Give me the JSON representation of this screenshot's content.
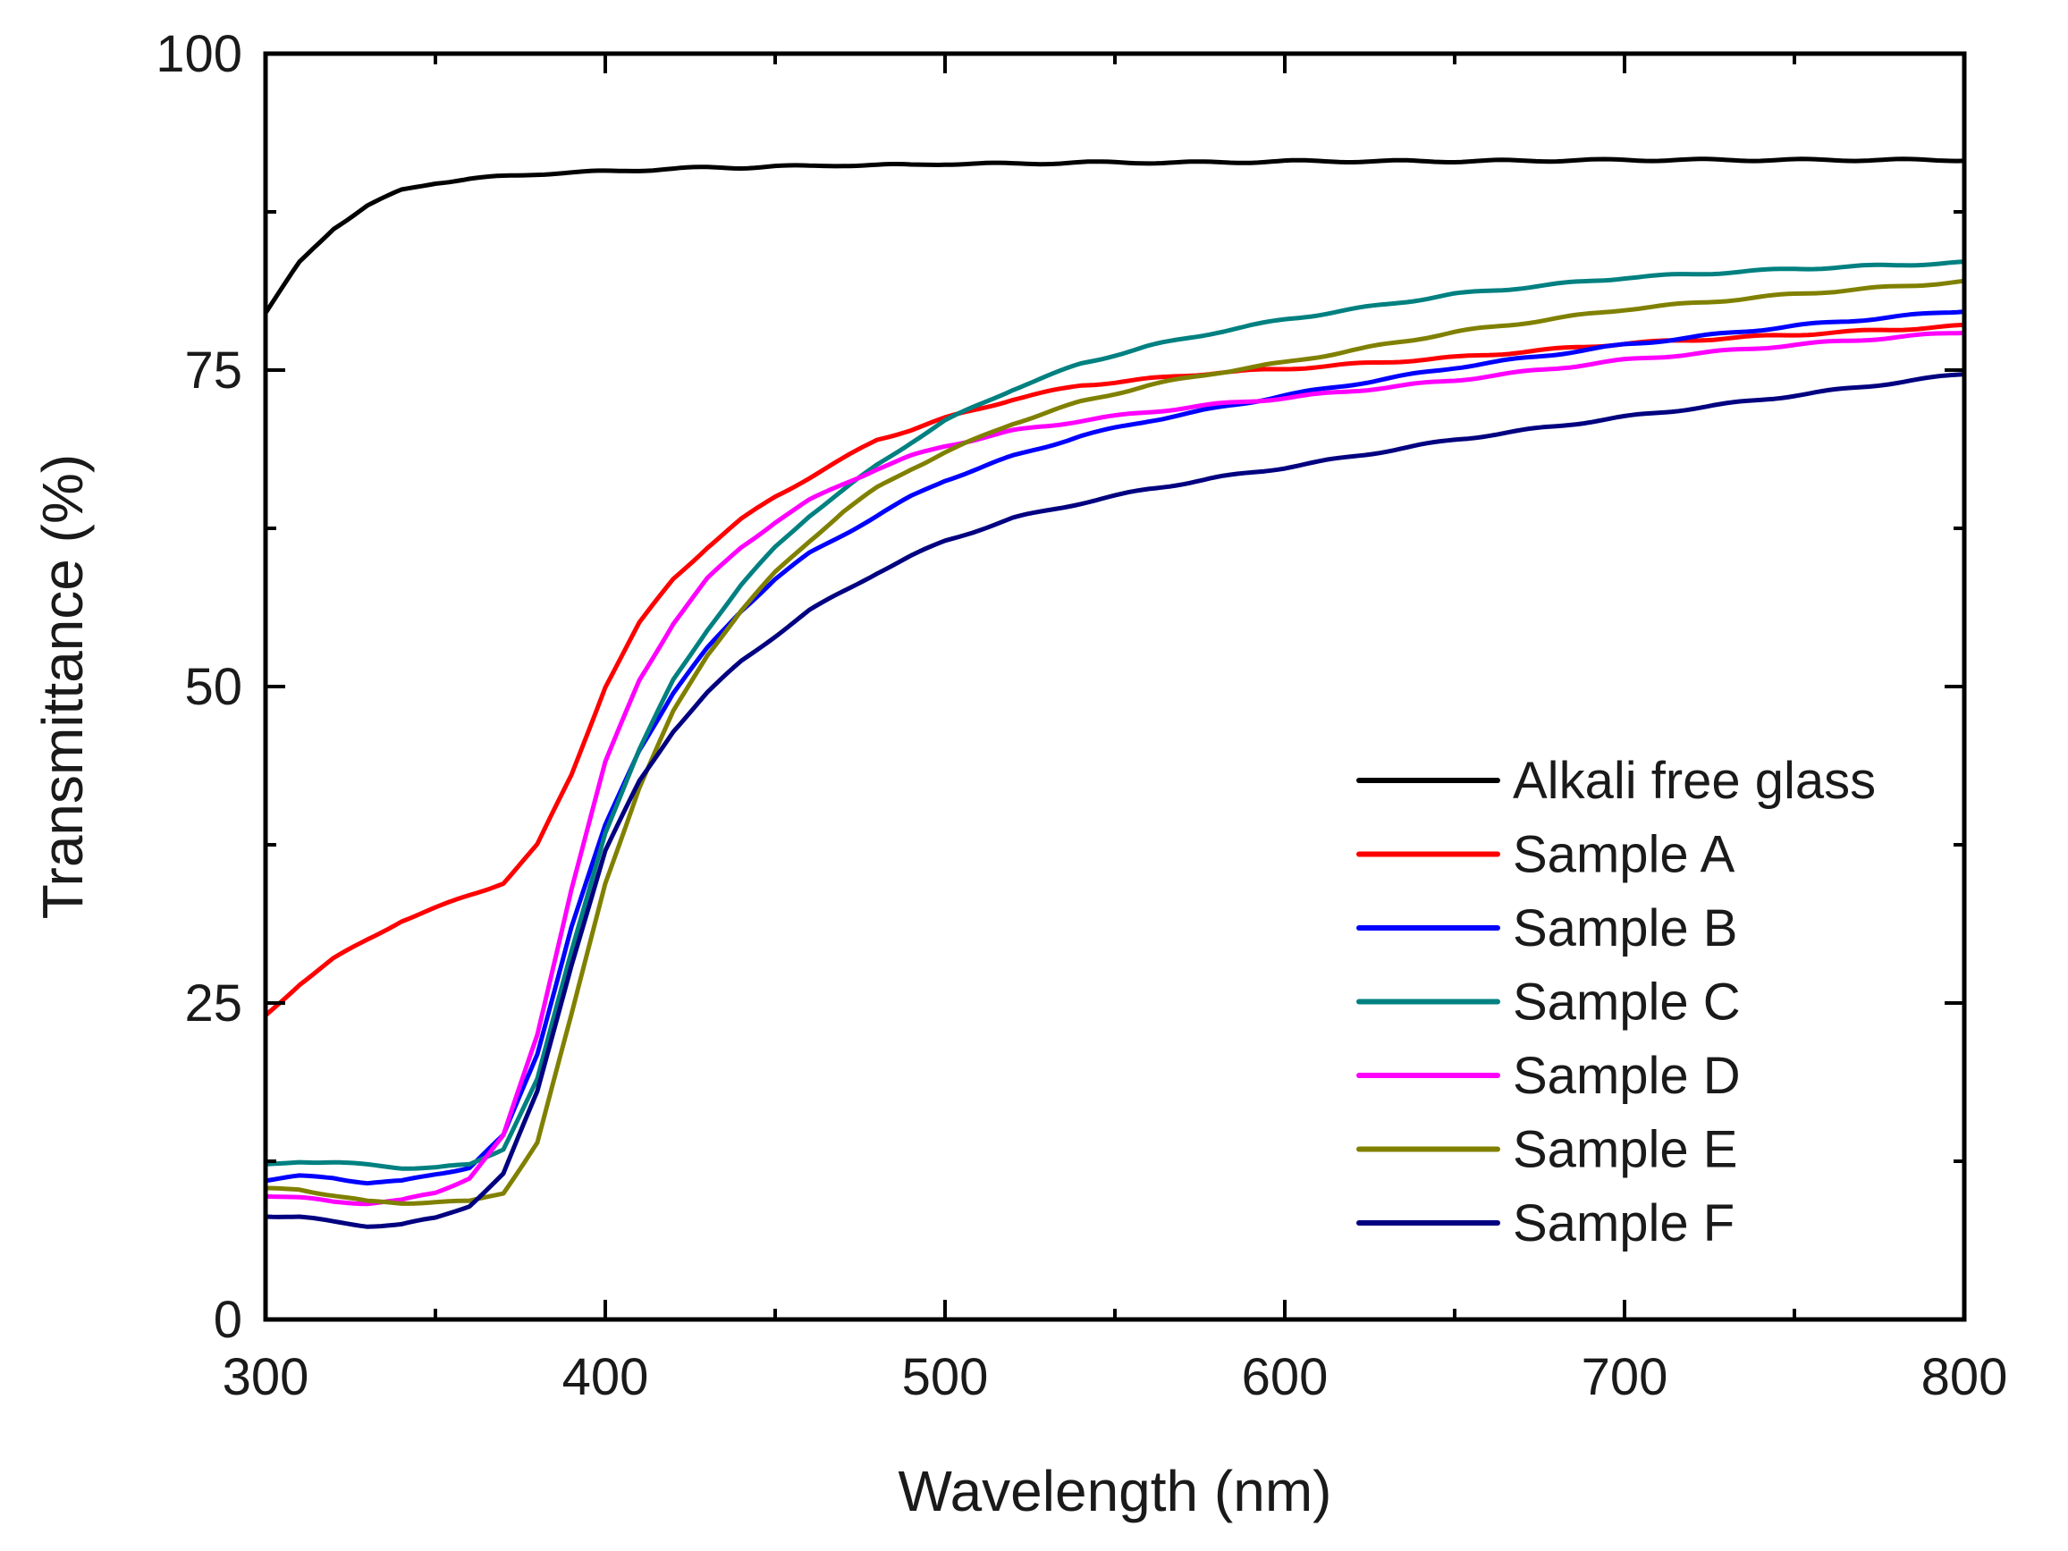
{
  "chart_data": {
    "type": "line",
    "title": "",
    "xlabel": "Wavelength (nm)",
    "ylabel": "Transmittance (%)",
    "xlim": [
      300,
      800
    ],
    "ylim": [
      0,
      100
    ],
    "xticks": [
      300,
      400,
      500,
      600,
      700,
      800
    ],
    "yticks": [
      0,
      25,
      50,
      75,
      100
    ],
    "legend_position": "bottom-right",
    "x": [
      300,
      310,
      320,
      330,
      340,
      350,
      360,
      370,
      380,
      390,
      400,
      410,
      420,
      430,
      440,
      450,
      460,
      470,
      480,
      490,
      500,
      520,
      540,
      560,
      580,
      600,
      650,
      700,
      750,
      800
    ],
    "series": [
      {
        "name": "Alkali free glass",
        "color": "#000000",
        "values": [
          79.5,
          83.5,
          86.2,
          88,
          89.2,
          89.8,
          90.1,
          90.3,
          90.5,
          90.6,
          90.7,
          90.8,
          90.9,
          91.0,
          91.0,
          91.1,
          91.1,
          91.2,
          91.2,
          91.2,
          91.3,
          91.3,
          91.4,
          91.4,
          91.4,
          91.5,
          91.5,
          91.6,
          91.6,
          91.6
        ]
      },
      {
        "name": "Sample A",
        "color": "#ff0000",
        "values": [
          24,
          26.5,
          28.5,
          30,
          31.5,
          32.5,
          33.5,
          34.5,
          37.5,
          43,
          50,
          55,
          58.5,
          61,
          63.2,
          65,
          66.5,
          68,
          69.5,
          70.3,
          71.2,
          72.7,
          73.8,
          74.3,
          74.8,
          75.1,
          76.0,
          77.1,
          77.8,
          78.5
        ]
      },
      {
        "name": "Sample B",
        "color": "#0000ff",
        "values": [
          11,
          11.3,
          11.2,
          10.8,
          10.9,
          11.5,
          12,
          14.5,
          21,
          31,
          39,
          45,
          49.5,
          53,
          56,
          58.5,
          60.5,
          62,
          63.5,
          65,
          66.3,
          68.2,
          69.8,
          71.0,
          72.0,
          73.0,
          75.2,
          77.0,
          78.5,
          79.7
        ]
      },
      {
        "name": "Sample C",
        "color": "#008080",
        "values": [
          12.2,
          12.5,
          12.4,
          12.2,
          12,
          12,
          12.2,
          13.5,
          19,
          29,
          38.5,
          45,
          50.5,
          54.5,
          58,
          61,
          63.5,
          65.5,
          67.5,
          69.3,
          71.0,
          73.5,
          75.5,
          76.9,
          78.0,
          79.0,
          81.0,
          82.3,
          83.0,
          83.5
        ]
      },
      {
        "name": "Sample D",
        "color": "#ff00ff",
        "values": [
          9.8,
          9.6,
          9.3,
          9.2,
          9.4,
          10,
          11.2,
          14.5,
          22.5,
          34,
          44,
          50.5,
          55,
          58.5,
          61,
          63,
          64.7,
          66,
          67.2,
          68.2,
          69.0,
          70.2,
          71.0,
          71.7,
          72.3,
          72.8,
          74.2,
          75.8,
          77.0,
          78.0
        ]
      },
      {
        "name": "Sample E",
        "color": "#808000",
        "values": [
          10.3,
          10.3,
          9.8,
          9.3,
          9.2,
          9.3,
          9.3,
          10,
          14,
          24,
          34.5,
          42,
          48,
          52.5,
          56,
          59,
          61.5,
          63.8,
          65.7,
          67.2,
          68.5,
          70.8,
          72.5,
          73.8,
          74.8,
          75.6,
          78.0,
          79.8,
          81.0,
          82.0
        ]
      },
      {
        "name": "Sample F",
        "color": "#000080",
        "values": [
          8.2,
          8.1,
          7.7,
          7.4,
          7.5,
          8,
          9,
          11.5,
          18,
          28,
          37,
          42.5,
          46.5,
          49.5,
          52,
          54,
          56,
          57.5,
          59,
          60.3,
          61.5,
          63.3,
          64.5,
          65.6,
          66.5,
          67.3,
          69.5,
          71.3,
          73.0,
          74.7
        ]
      }
    ]
  }
}
